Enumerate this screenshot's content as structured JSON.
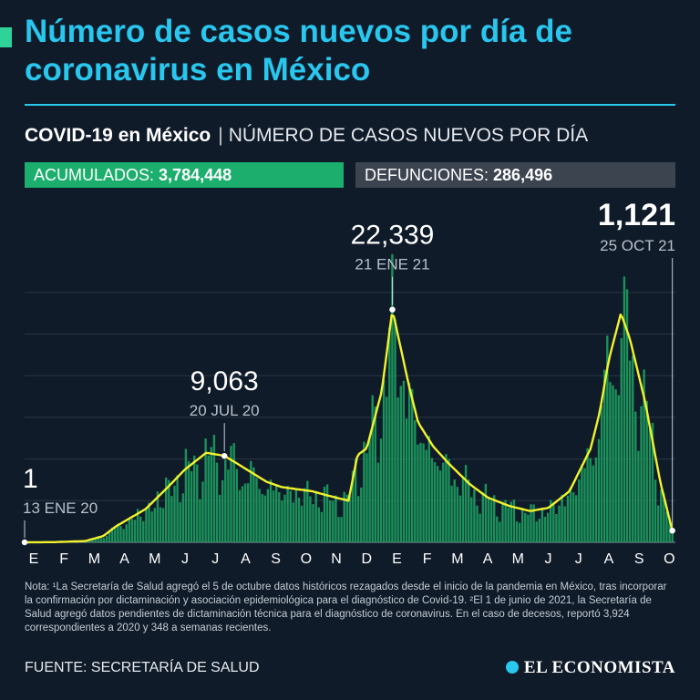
{
  "header": {
    "title": "Número de casos nuevos por día de coronavirus en México",
    "subtitle_bold": "COVID-19 en México",
    "subtitle_separator": "|",
    "subtitle_light": "NÚMERO DE CASOS NUEVOS POR DÍA"
  },
  "stats": {
    "cumulative_label": "ACUMULADOS:",
    "cumulative_value": "3,784,448",
    "deaths_label": "DEFUNCIONES:",
    "deaths_value": "286,496"
  },
  "colors": {
    "background": "#0f1b29",
    "title": "#29c6ee",
    "bars": "#1d9e5f",
    "line": "#f2f22c",
    "grid": "#2b3646"
  },
  "chart_data": {
    "type": "bar",
    "title": "Número de casos nuevos por día",
    "xlabel": "",
    "ylabel": "",
    "grid": true,
    "x_tick_labels": [
      "E",
      "F",
      "M",
      "A",
      "M",
      "J",
      "J",
      "A",
      "S",
      "O",
      "N",
      "D",
      "E",
      "F",
      "M",
      "A",
      "M",
      "J",
      "J",
      "A",
      "S",
      "O"
    ],
    "ylim": [
      0,
      28000
    ],
    "smoothed_line_anchors": {
      "months_index": [
        0,
        1.0,
        2.0,
        2.6,
        3.0,
        4.0,
        4.7,
        5.3,
        6.0,
        6.6,
        7.0,
        7.5,
        8.0,
        8.5,
        9.0,
        9.5,
        10.0,
        10.7,
        11.0,
        11.3,
        11.8,
        12.15,
        12.7,
        13.0,
        13.5,
        14.0,
        14.7,
        15.3,
        16.0,
        16.7,
        17.3,
        18.0,
        18.7,
        19.0,
        19.3,
        19.7,
        20.0,
        20.5,
        21.0,
        21.4
      ],
      "values": [
        1,
        20,
        120,
        600,
        1500,
        3200,
        5200,
        7000,
        8600,
        8300,
        7600,
        6700,
        5800,
        5300,
        5100,
        4900,
        4500,
        4000,
        8400,
        9000,
        14500,
        22339,
        15000,
        11500,
        9200,
        7600,
        5600,
        4300,
        3500,
        3000,
        3300,
        4900,
        9000,
        12500,
        17500,
        22000,
        19500,
        13500,
        5800,
        1121
      ]
    },
    "annotations": [
      {
        "value": "1",
        "date": "13 ENE 20"
      },
      {
        "value": "9,063",
        "date": "20 JUL 20"
      },
      {
        "value": "22,339",
        "date": "21 ENE 21"
      },
      {
        "value": "1,121",
        "date": "25 OCT 21"
      }
    ]
  },
  "footer": {
    "note_1": "Nota: ¹La Secretaría de Salud agregó el 5 de octubre datos históricos rezagados desde el inicio de la pandemia en México, tras incorporar la confirmación por dictaminación y asociación epidemiológica para el diagnóstico de Covid-19.",
    "note_2": "²El 1 de junio de 2021, la Secretaría de Salud agregó datos pendientes de dictaminación técnica para el diagnóstico de coronavirus. En el caso de decesos, reportó 3,924 correspondientes a 2020 y 348 a semanas recientes.",
    "source": "FUENTE: SECRETARÍA DE SALUD",
    "brand": "EL ECONOMISTA"
  }
}
